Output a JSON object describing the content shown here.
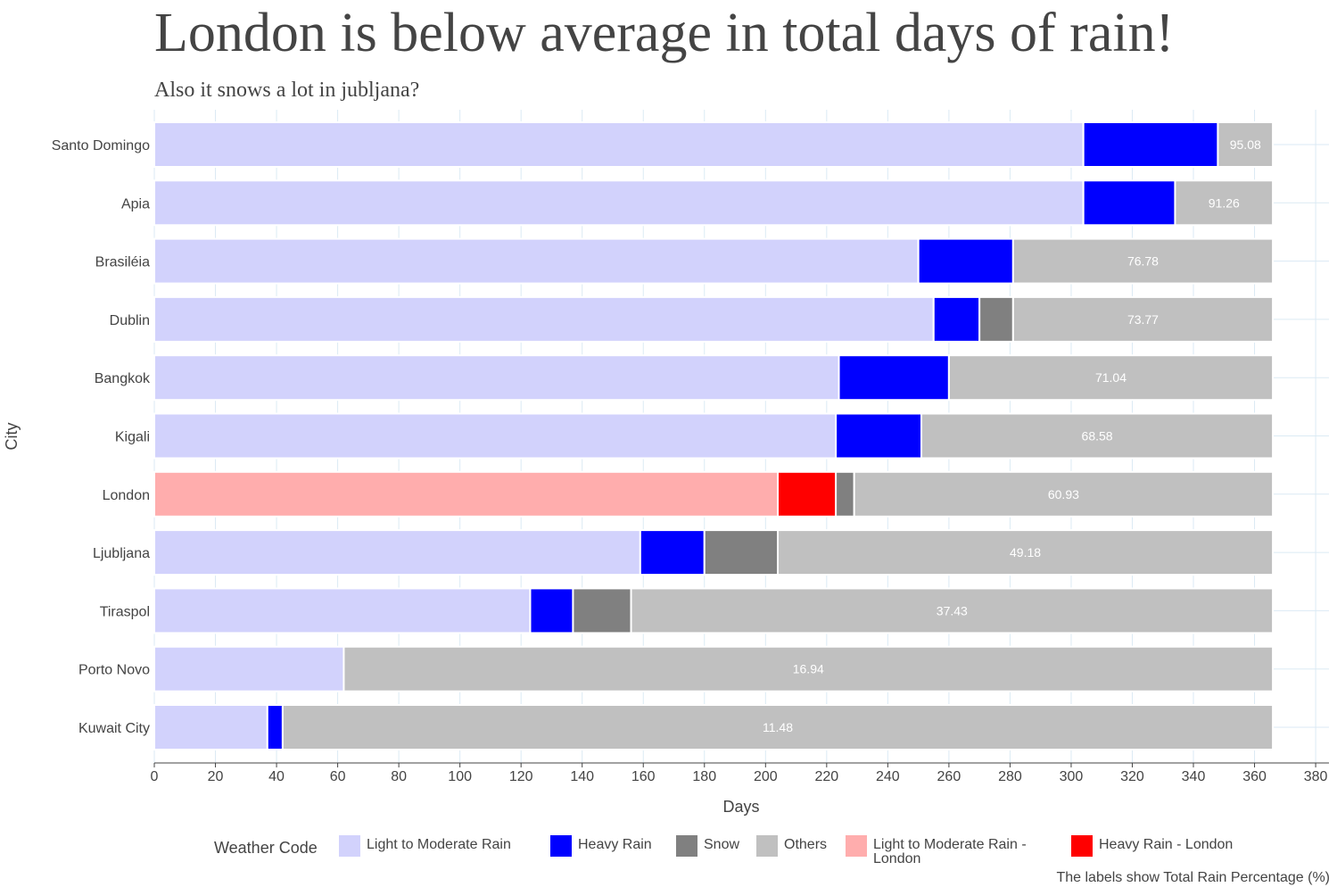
{
  "title": "London is below average in total days of rain!",
  "subtitle": "Also it snows a lot in jubljana?",
  "caption": "The labels show Total Rain Percentage (%)",
  "legend": {
    "title": "Weather Code",
    "items": [
      {
        "label": "Light to Moderate Rain",
        "color": "#d2d2fc"
      },
      {
        "label": "Heavy Rain",
        "color": "#0000ff"
      },
      {
        "label": "Snow",
        "color": "#808080"
      },
      {
        "label": "Others",
        "color": "#c0c0c0"
      },
      {
        "label": "Light to Moderate Rain - London",
        "color": "#ffadad"
      },
      {
        "label": "Heavy Rain - London",
        "color": "#ff0000"
      }
    ]
  },
  "chart_data": {
    "type": "bar",
    "orientation": "horizontal",
    "stacked": true,
    "xlabel": "Days",
    "ylabel": "City",
    "xlim": [
      0,
      385
    ],
    "xticks": [
      0,
      20,
      40,
      60,
      80,
      100,
      120,
      140,
      160,
      180,
      200,
      220,
      240,
      260,
      280,
      300,
      320,
      340,
      360,
      380
    ],
    "grid": true,
    "legend_position": "bottom",
    "categories": [
      "Santo Domingo",
      "Apia",
      "Brasiléia",
      "Dublin",
      "Bangkok",
      "Kigali",
      "London",
      "Ljubljana",
      "Tiraspol",
      "Porto Novo",
      "Kuwait City"
    ],
    "series": [
      {
        "name": "Light to Moderate Rain",
        "color": "#d2d2fc",
        "values": [
          304,
          304,
          250,
          255,
          224,
          223,
          0,
          159,
          123,
          62,
          37
        ]
      },
      {
        "name": "Heavy Rain",
        "color": "#0000ff",
        "values": [
          44,
          30,
          31,
          15,
          36,
          28,
          0,
          21,
          14,
          0,
          5
        ]
      },
      {
        "name": "Snow",
        "color": "#808080",
        "values": [
          0,
          0,
          0,
          11,
          0,
          0,
          6,
          24,
          19,
          0,
          0
        ]
      },
      {
        "name": "Others",
        "color": "#c0c0c0",
        "values": [
          18,
          32,
          85,
          85,
          106,
          115,
          137,
          162,
          210,
          304,
          324
        ]
      },
      {
        "name": "Light to Moderate Rain - London",
        "color": "#ffadad",
        "values": [
          0,
          0,
          0,
          0,
          0,
          0,
          204,
          0,
          0,
          0,
          0
        ]
      },
      {
        "name": "Heavy Rain - London",
        "color": "#ff0000",
        "values": [
          0,
          0,
          0,
          0,
          0,
          0,
          19,
          0,
          0,
          0,
          0
        ]
      }
    ],
    "stack_order": [
      "Light to Moderate Rain - London",
      "Light to Moderate Rain",
      "Heavy Rain - London",
      "Heavy Rain",
      "Snow",
      "Others"
    ],
    "data_labels": [
      "95.08",
      "91.26",
      "76.78",
      "73.77",
      "71.04",
      "68.58",
      "60.93",
      "49.18",
      "37.43",
      "16.94",
      "11.48"
    ]
  }
}
